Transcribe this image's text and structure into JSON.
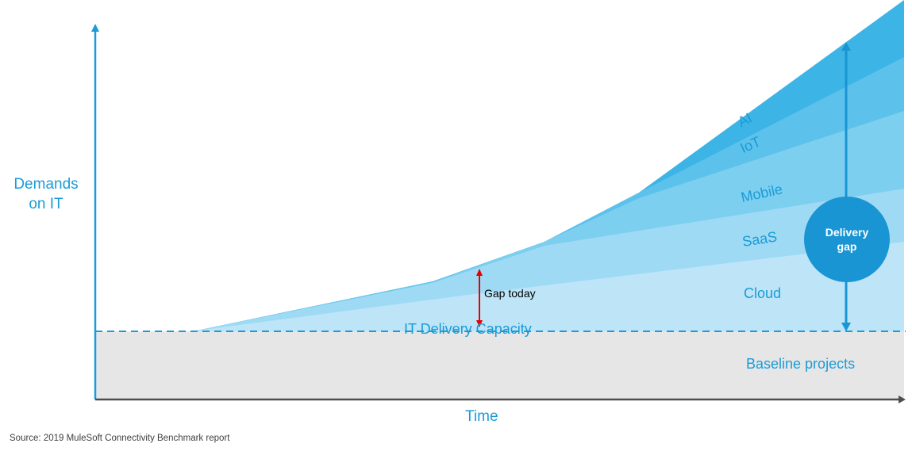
{
  "y_label": "Demands on IT",
  "y_label_lines": [
    "Demands",
    "on IT"
  ],
  "x_label": "Time",
  "source": "Source: 2019 MuleSoft Connectivity Benchmark report",
  "capacity_label": "IT Delivery  Capacity",
  "baseline_label": "Baseline  projects",
  "gap_today_label": "Gap today",
  "delivery_gap_label": "Delivery gap",
  "segments": [
    {
      "name": "AI",
      "label": "AI",
      "color": "#3cb4e5"
    },
    {
      "name": "IoT",
      "label": "IoT",
      "color": "#5cc2eb"
    },
    {
      "name": "Mobile",
      "label": "Mobile",
      "color": "#7dcff0"
    },
    {
      "name": "SaaS",
      "label": "SaaS",
      "color": "#9fdaf4"
    },
    {
      "name": "Cloud",
      "label": "Cloud",
      "color": "#bde5f7"
    }
  ],
  "colors": {
    "accent": "#1b9bd7",
    "baseline_fill": "#e6e6e6",
    "axis": "#4d4d4d",
    "gap_today_arrow": "#e60000",
    "delivery_gap_circle": "#1a95d4"
  }
}
